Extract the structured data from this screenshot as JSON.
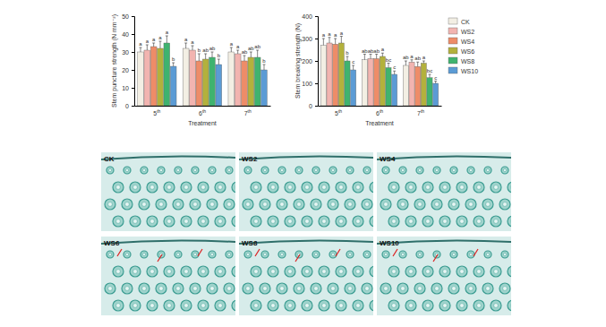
{
  "chart_data": [
    {
      "type": "bar",
      "y_label": "Stem puncture strength (N mm⁻²)",
      "x_label": "Treatment",
      "categories": [
        "5th",
        "6th",
        "7th"
      ],
      "ylim": [
        0,
        50
      ],
      "yticks": [
        0,
        10,
        20,
        30,
        40,
        50
      ],
      "series": [
        {
          "name": "CK",
          "color": "#f3efe4",
          "values": [
            30,
            32,
            30
          ],
          "errors": [
            2.5,
            3,
            2.5
          ],
          "letters": [
            "a",
            "a",
            "a"
          ]
        },
        {
          "name": "WS2",
          "color": "#f2b4b0",
          "values": [
            31,
            31,
            29
          ],
          "errors": [
            3,
            2.5,
            2
          ],
          "letters": [
            "a",
            "a",
            "a"
          ]
        },
        {
          "name": "WS4",
          "color": "#ee8c68",
          "values": [
            33,
            25,
            25
          ],
          "errors": [
            2,
            4,
            3
          ],
          "letters": [
            "a",
            "b",
            "ab"
          ]
        },
        {
          "name": "WS6",
          "color": "#b3b13c",
          "values": [
            32,
            26,
            27
          ],
          "errors": [
            4,
            3,
            3
          ],
          "letters": [
            "a",
            "ab",
            "ab"
          ]
        },
        {
          "name": "WS8",
          "color": "#3fb36f",
          "values": [
            35,
            27,
            27
          ],
          "errors": [
            4,
            3,
            4
          ],
          "letters": [
            "a",
            "ab",
            "ab"
          ]
        },
        {
          "name": "WS10",
          "color": "#5b9bd5",
          "values": [
            22,
            23,
            20
          ],
          "errors": [
            2,
            3,
            3
          ],
          "letters": [
            "b",
            "b",
            "b"
          ]
        }
      ]
    },
    {
      "type": "bar",
      "y_label": "Stem breaking strength (N)",
      "x_label": "Treatment",
      "categories": [
        "5th",
        "6th",
        "7th"
      ],
      "ylim": [
        0,
        400
      ],
      "yticks": [
        0,
        100,
        200,
        300,
        400
      ],
      "legend": "right",
      "series": [
        {
          "name": "CK",
          "color": "#f3efe4",
          "values": [
            270,
            205,
            180
          ],
          "errors": [
            30,
            25,
            20
          ],
          "letters": [
            "a",
            "ab",
            "ab"
          ]
        },
        {
          "name": "WS2",
          "color": "#f2b4b0",
          "values": [
            280,
            210,
            195
          ],
          "errors": [
            25,
            20,
            10
          ],
          "letters": [
            "a",
            "ab",
            "a"
          ]
        },
        {
          "name": "WS4",
          "color": "#ee8c68",
          "values": [
            275,
            210,
            175
          ],
          "errors": [
            25,
            20,
            20
          ],
          "letters": [
            "a",
            "ab",
            "ab"
          ]
        },
        {
          "name": "WS6",
          "color": "#b3b13c",
          "values": [
            280,
            220,
            190
          ],
          "errors": [
            30,
            15,
            10
          ],
          "letters": [
            "a",
            "a",
            "a"
          ]
        },
        {
          "name": "WS8",
          "color": "#3fb36f",
          "values": [
            200,
            170,
            125
          ],
          "errors": [
            20,
            20,
            15
          ],
          "letters": [
            "b",
            "bc",
            "bc"
          ]
        },
        {
          "name": "WS10",
          "color": "#5b9bd5",
          "values": [
            160,
            140,
            100
          ],
          "errors": [
            20,
            15,
            10
          ],
          "letters": [
            "c",
            "c",
            "c"
          ]
        }
      ]
    }
  ],
  "micrograph_panels": [
    "CK",
    "WS2",
    "WS4",
    "WS6",
    "WS8",
    "WS10"
  ]
}
